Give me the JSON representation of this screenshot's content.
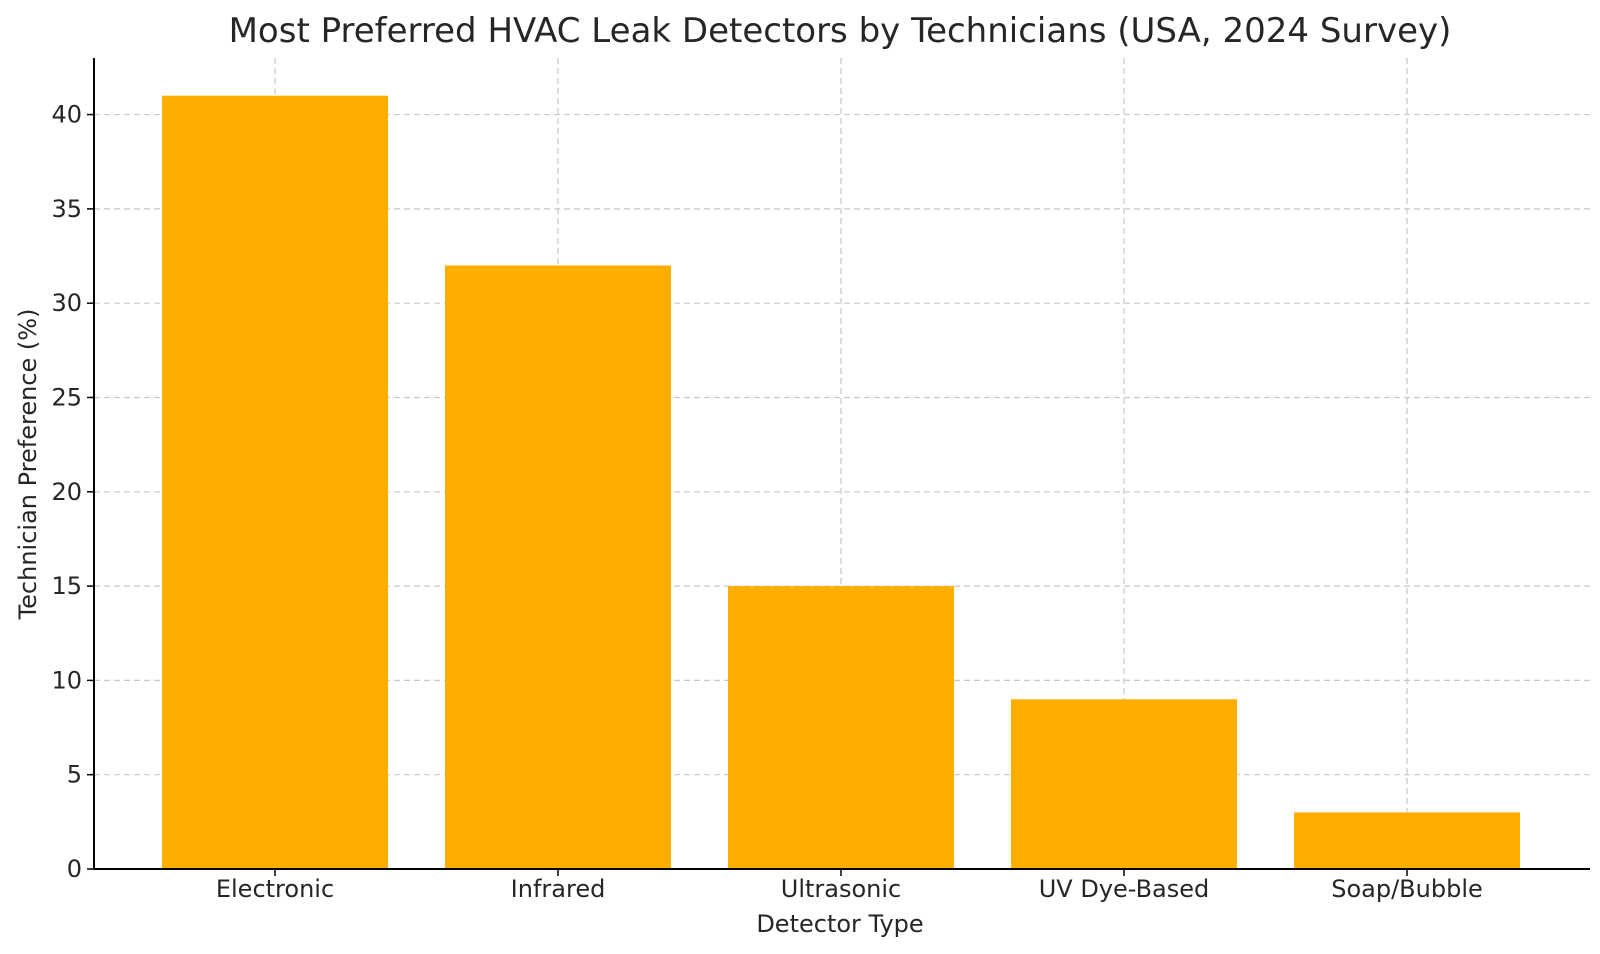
{
  "chart_data": {
    "type": "bar",
    "title": "Most Preferred HVAC Leak Detectors by Technicians (USA, 2024 Survey)",
    "xlabel": "Detector Type",
    "ylabel": "Technician Preference (%)",
    "categories": [
      "Electronic",
      "Infrared",
      "Ultrasonic",
      "UV Dye-Based",
      "Soap/Bubble"
    ],
    "values": [
      41,
      32,
      15,
      9,
      3
    ],
    "ylim": [
      0,
      43
    ],
    "yticks": [
      0,
      5,
      10,
      15,
      20,
      25,
      30,
      35,
      40
    ],
    "grid": true,
    "bar_color": "#ffae00"
  }
}
